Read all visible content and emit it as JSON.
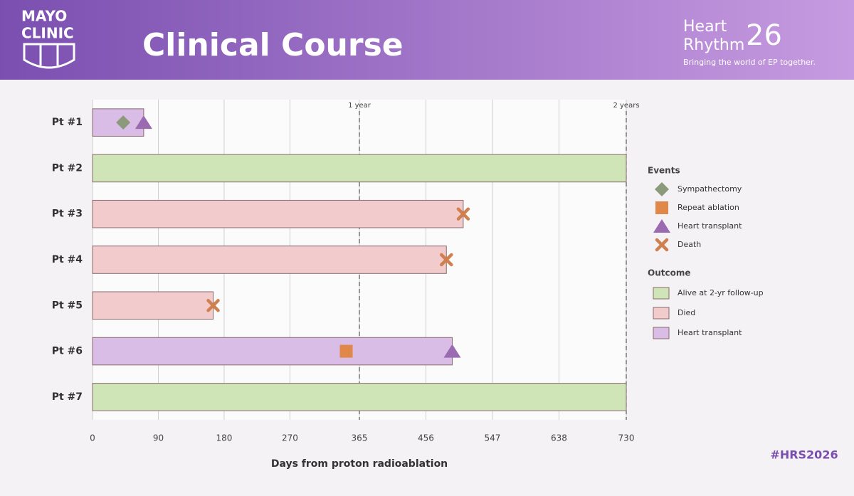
{
  "header": {
    "logo": [
      "MAYO",
      "CLINIC"
    ],
    "title": "Clinical Course",
    "brand": [
      "Heart",
      "Rhythm",
      "26"
    ],
    "tagline": "Bringing the world of EP together.",
    "hashtag": "#HRS2026"
  },
  "chart_data": {
    "type": "swimmer",
    "categories": [
      "Pt #1",
      "Pt #2",
      "Pt #3",
      "Pt #4",
      "Pt #5",
      "Pt #6",
      "Pt #7"
    ],
    "outcome_title": "Outcome",
    "series": [
      {
        "name": "Alive at 2-yr follow-up",
        "color": "#cfe5b8",
        "values": [
          null,
          730,
          null,
          null,
          null,
          null,
          730
        ]
      },
      {
        "name": "Died",
        "color": "#f2cccc",
        "values": [
          null,
          null,
          507,
          484,
          165,
          null,
          null
        ]
      },
      {
        "name": "Heart transplant",
        "color": "#d9bde6",
        "values": [
          70,
          null,
          null,
          null,
          null,
          492,
          null
        ]
      }
    ],
    "events_title": "Events",
    "events": [
      {
        "name": "Sympathectomy",
        "marker": "diamond",
        "color": "#8a9a7a",
        "values": [
          42,
          null,
          null,
          null,
          null,
          null,
          null
        ]
      },
      {
        "name": "Repeat ablation",
        "marker": "square",
        "color": "#e0874a",
        "values": [
          null,
          null,
          null,
          null,
          null,
          347,
          null
        ]
      },
      {
        "name": "Heart transplant",
        "marker": "triangle",
        "color": "#9a6bb0",
        "values": [
          70,
          null,
          null,
          null,
          null,
          492,
          null
        ]
      },
      {
        "name": "Death",
        "marker": "cross",
        "color": "#d0804f",
        "values": [
          null,
          null,
          507,
          484,
          165,
          null,
          null
        ]
      }
    ],
    "reference_lines": [
      {
        "value": 365,
        "label": "1 year"
      },
      {
        "value": 730,
        "label": "2 years"
      }
    ],
    "xlim": [
      0,
      730
    ],
    "xticks": [
      0,
      90,
      180,
      270,
      365,
      456,
      547,
      638,
      730
    ],
    "grid": true,
    "xlabel": "Days from proton radioablation"
  }
}
